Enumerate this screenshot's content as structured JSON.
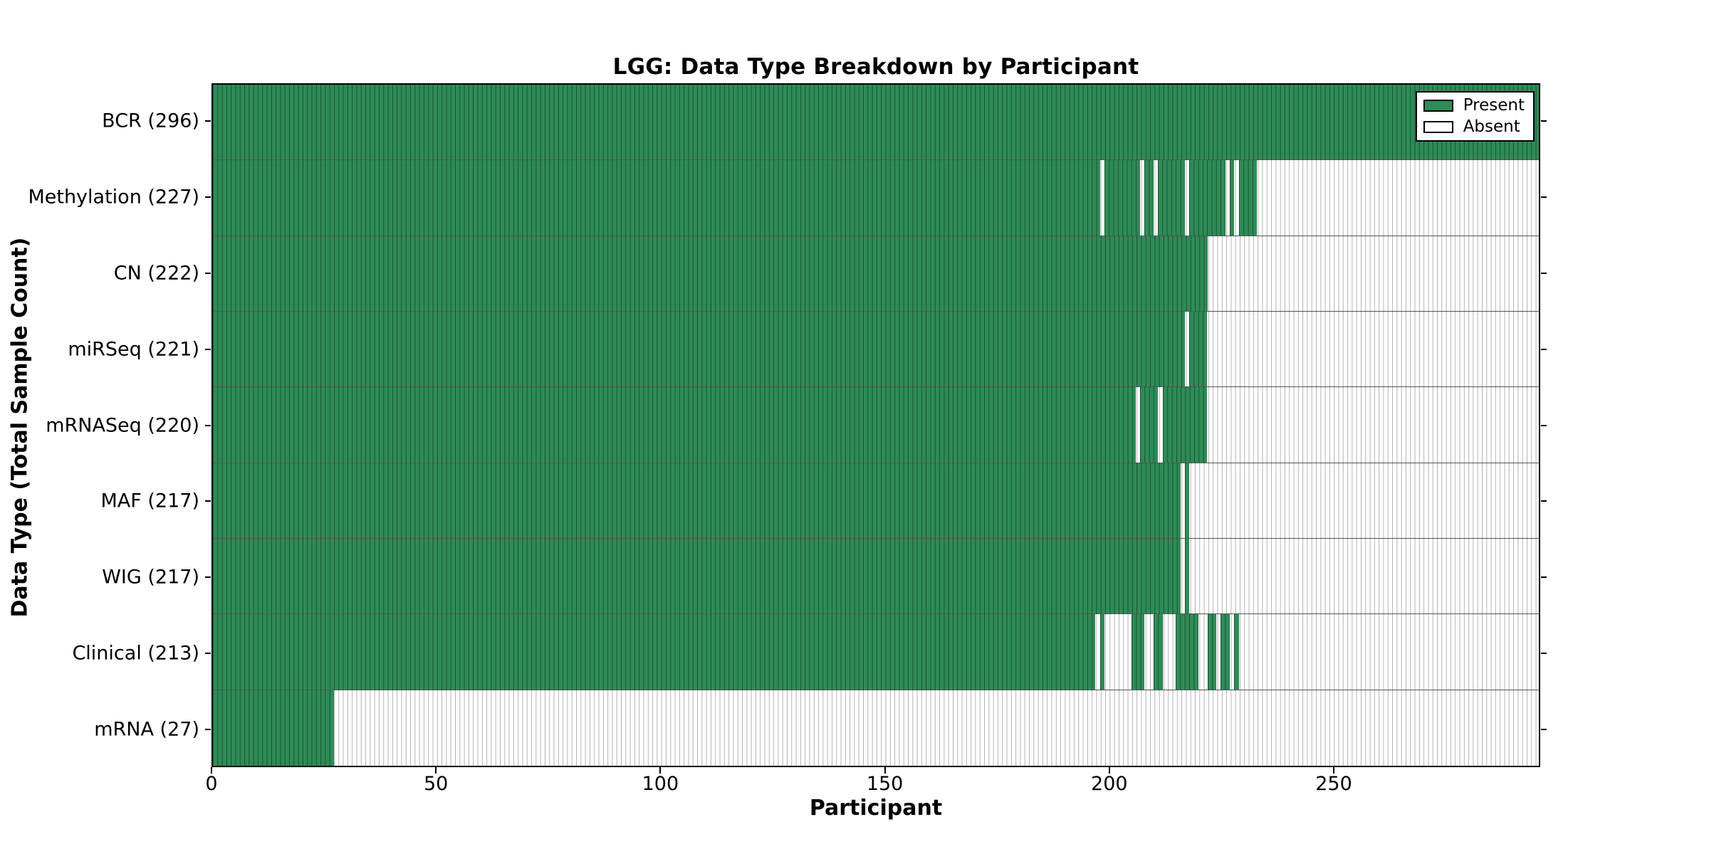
{
  "title": "LGG: Data Type Breakdown by Participant",
  "chart_data": {
    "type": "heatmap",
    "title": "LGG: Data Type Breakdown by Participant",
    "xlabel": "Participant",
    "ylabel": "Data Type (Total Sample Count)",
    "x_max": 296,
    "x_ticks": [
      0,
      50,
      100,
      150,
      200,
      250
    ],
    "grid": "row-separators-only",
    "colors": {
      "present": "#2e8b57",
      "absent": "#ffffff",
      "cell_edge_present": "rgba(0,0,0,0.42)",
      "cell_edge_absent": "rgba(0,0,0,0.30)",
      "axis": "#000000"
    },
    "legend": {
      "position": "upper right",
      "entries": [
        {
          "label": "Present",
          "color": "#2e8b57"
        },
        {
          "label": "Absent",
          "color": "#ffffff"
        }
      ]
    },
    "rows": [
      {
        "name": "BCR",
        "label": "BCR (296)",
        "total": 296,
        "present_ranges": [
          [
            0,
            296
          ]
        ]
      },
      {
        "name": "Methylation",
        "label": "Methylation (227)",
        "total": 227,
        "present_ranges": [
          [
            0,
            198
          ],
          [
            199,
            207
          ],
          [
            208,
            210
          ],
          [
            211,
            217
          ],
          [
            218,
            226
          ],
          [
            227,
            228
          ],
          [
            229,
            233
          ]
        ]
      },
      {
        "name": "CN",
        "label": "CN (222)",
        "total": 222,
        "present_ranges": [
          [
            0,
            222
          ]
        ]
      },
      {
        "name": "miRSeq",
        "label": "miRSeq (221)",
        "total": 221,
        "present_ranges": [
          [
            0,
            217
          ],
          [
            218,
            222
          ]
        ]
      },
      {
        "name": "mRNASeq",
        "label": "mRNASeq (220)",
        "total": 220,
        "present_ranges": [
          [
            0,
            206
          ],
          [
            207,
            211
          ],
          [
            212,
            222
          ]
        ]
      },
      {
        "name": "MAF",
        "label": "MAF (217)",
        "total": 217,
        "present_ranges": [
          [
            0,
            216
          ],
          [
            217,
            218
          ]
        ]
      },
      {
        "name": "WIG",
        "label": "WIG (217)",
        "total": 217,
        "present_ranges": [
          [
            0,
            216
          ],
          [
            217,
            218
          ]
        ]
      },
      {
        "name": "Clinical",
        "label": "Clinical (213)",
        "total": 213,
        "present_ranges": [
          [
            0,
            197
          ],
          [
            198,
            199
          ],
          [
            205,
            208
          ],
          [
            210,
            212
          ],
          [
            215,
            220
          ],
          [
            222,
            224
          ],
          [
            225,
            227
          ],
          [
            228,
            229
          ]
        ]
      },
      {
        "name": "mRNA",
        "label": "mRNA (27)",
        "total": 27,
        "present_ranges": [
          [
            0,
            27
          ]
        ]
      }
    ]
  }
}
